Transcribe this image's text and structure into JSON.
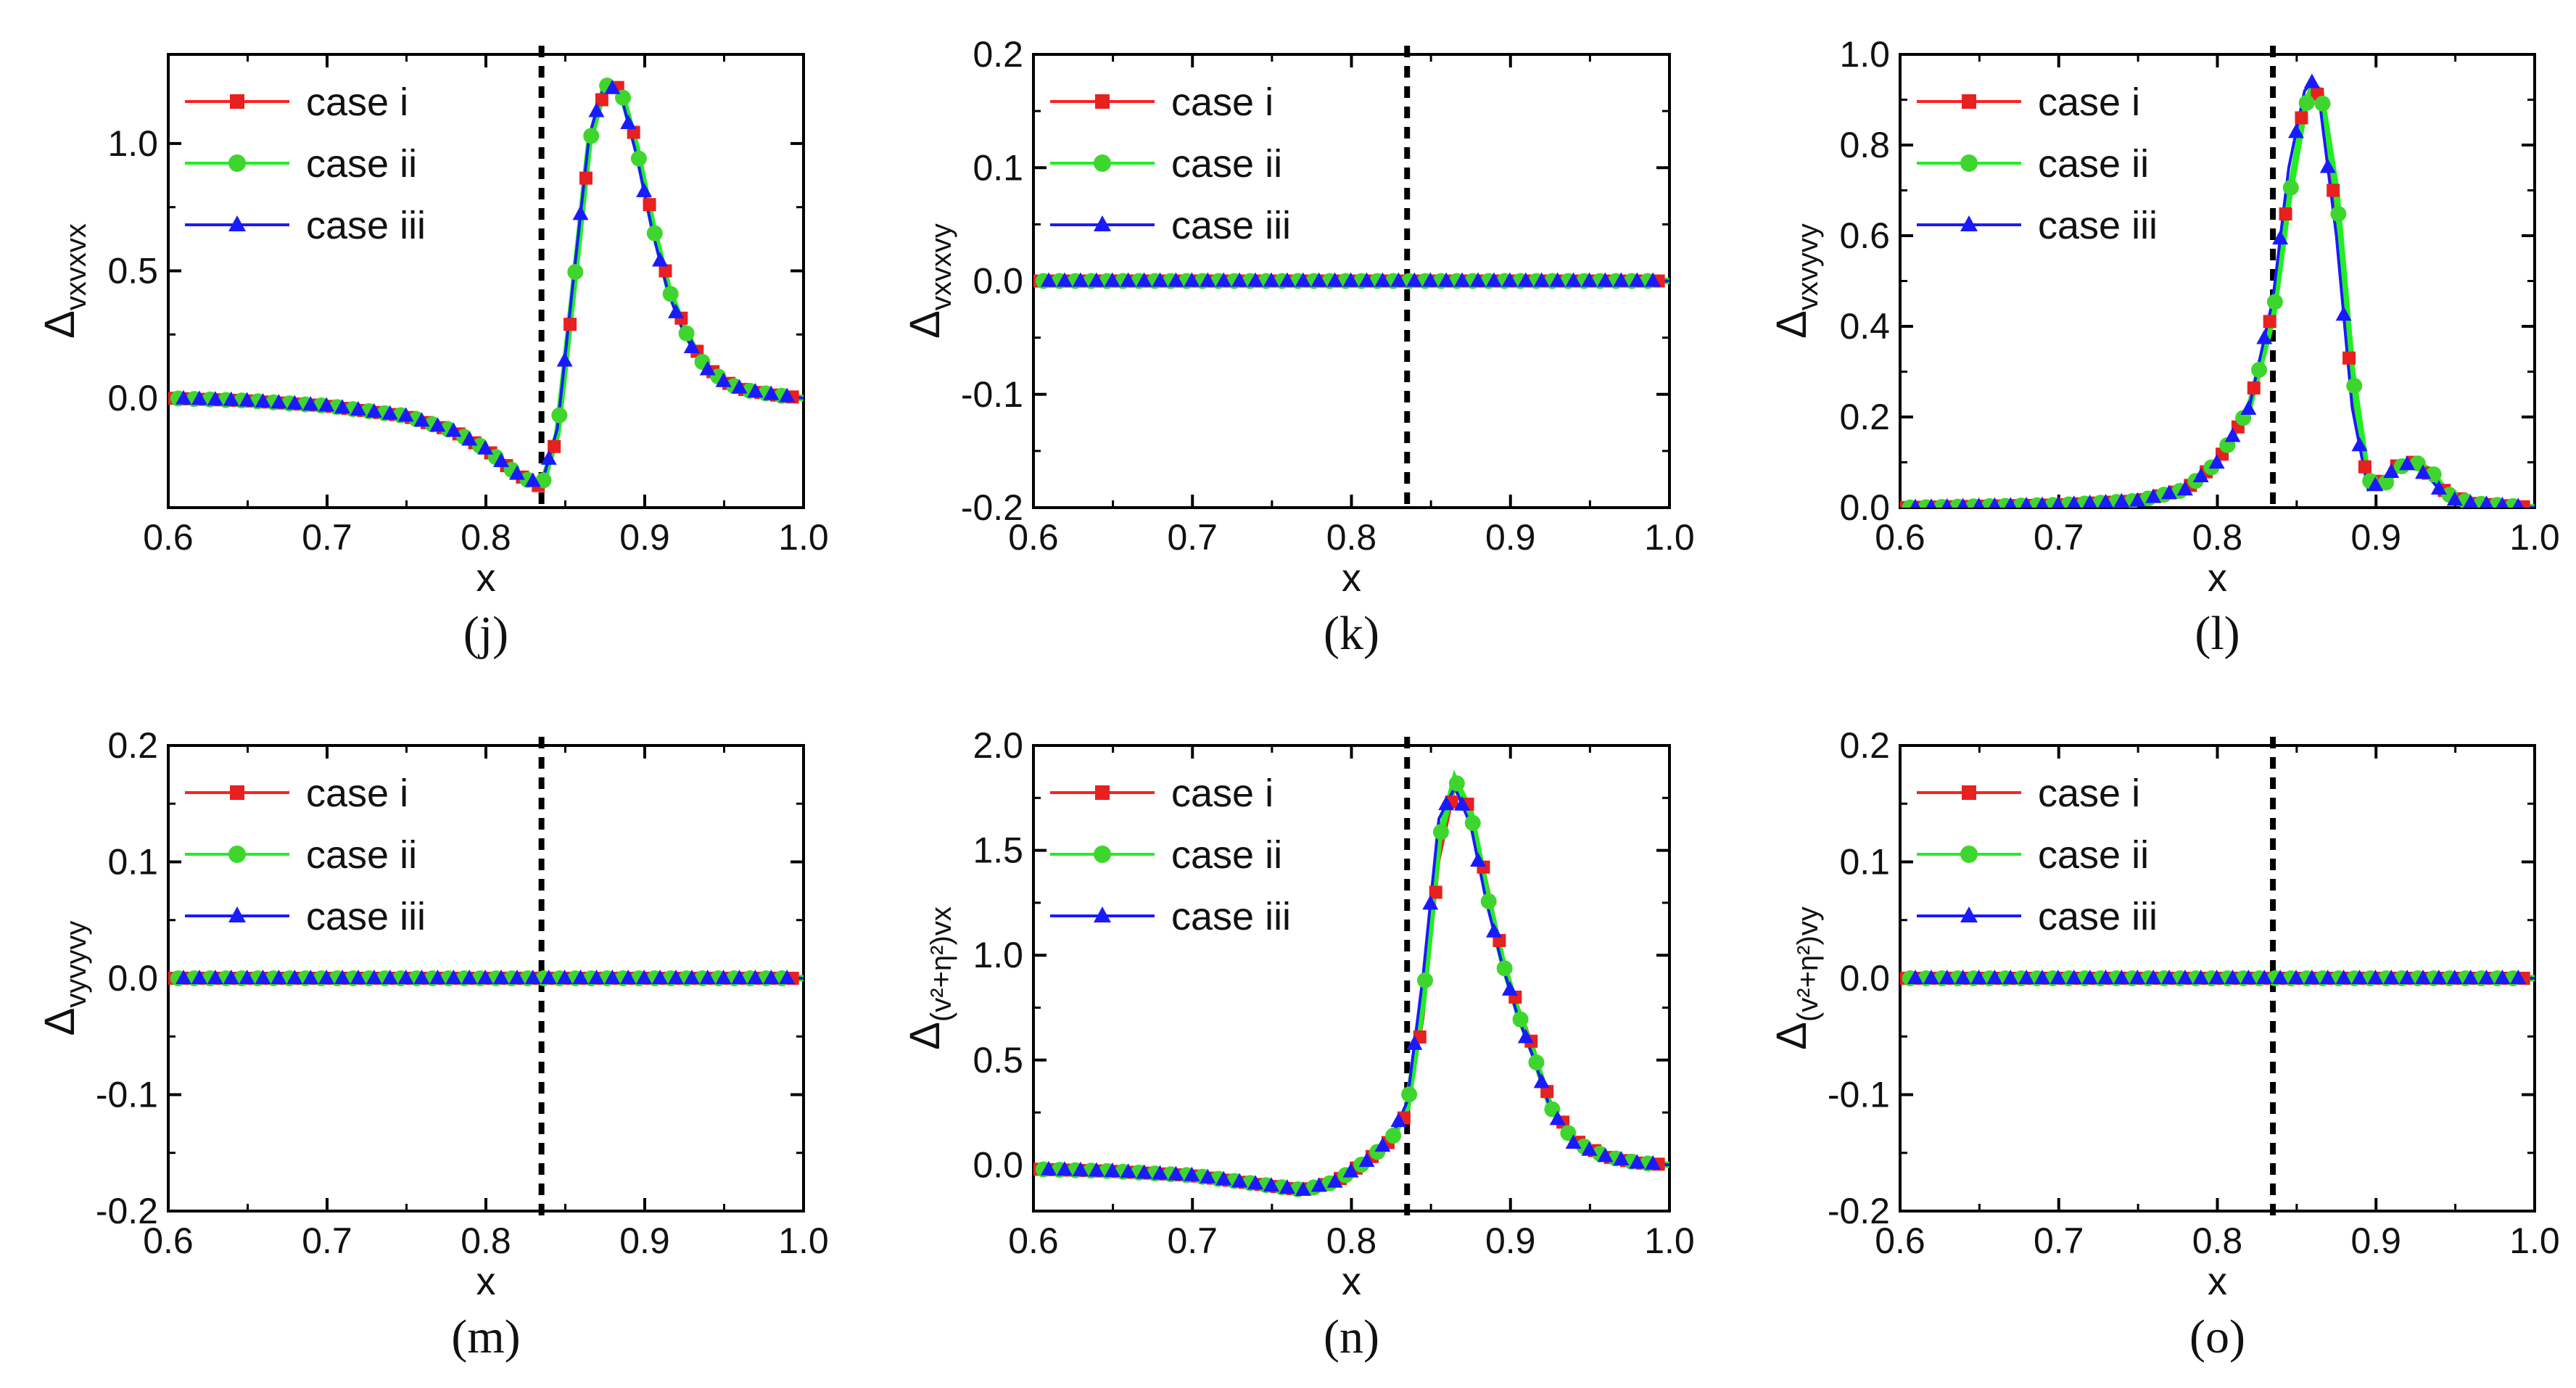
{
  "chart_data": [
    {
      "panel": "(j)",
      "type": "line",
      "ylabel_main": "Δ",
      "ylabel_sub": "vxvxvx",
      "ylabel_sup": "",
      "xlabel": "x",
      "xlim": [
        0.6,
        1.0
      ],
      "ylim": [
        -0.43,
        1.35
      ],
      "xticks": [
        "0.6",
        "0.7",
        "0.8",
        "0.9",
        "1.0"
      ],
      "yticks": [
        {
          "v": 0.0,
          "label": "0.0"
        },
        {
          "v": 0.5,
          "label": "0.5"
        },
        {
          "v": 1.0,
          "label": "1.0"
        }
      ],
      "vline_x": 0.835,
      "x": [
        0.6,
        0.65,
        0.7,
        0.75,
        0.78,
        0.8,
        0.82,
        0.835,
        0.845,
        0.855,
        0.865,
        0.875,
        0.885,
        0.895,
        0.905,
        0.915,
        0.925,
        0.935,
        0.945,
        0.955,
        0.965,
        0.975,
        0.985,
        1.0
      ],
      "series": [
        {
          "name": "case i",
          "y": [
            0.0,
            -0.01,
            -0.03,
            -0.07,
            -0.13,
            -0.2,
            -0.3,
            -0.35,
            -0.15,
            0.4,
            0.98,
            1.22,
            1.22,
            1.0,
            0.7,
            0.45,
            0.28,
            0.16,
            0.09,
            0.05,
            0.03,
            0.02,
            0.01,
            0.0
          ]
        },
        {
          "name": "case ii",
          "y": [
            0.0,
            -0.01,
            -0.03,
            -0.07,
            -0.13,
            -0.2,
            -0.3,
            -0.35,
            -0.14,
            0.42,
            1.0,
            1.23,
            1.21,
            0.98,
            0.68,
            0.43,
            0.27,
            0.15,
            0.09,
            0.05,
            0.03,
            0.02,
            0.01,
            0.0
          ]
        },
        {
          "name": "case iii",
          "y": [
            0.0,
            -0.01,
            -0.03,
            -0.07,
            -0.13,
            -0.2,
            -0.3,
            -0.34,
            -0.12,
            0.46,
            1.03,
            1.24,
            1.19,
            0.95,
            0.65,
            0.41,
            0.25,
            0.14,
            0.08,
            0.05,
            0.03,
            0.02,
            0.01,
            0.0
          ]
        }
      ]
    },
    {
      "panel": "(k)",
      "type": "line",
      "ylabel_main": "Δ",
      "ylabel_sub": "vxvxvy",
      "ylabel_sup": "",
      "xlabel": "x",
      "xlim": [
        0.6,
        1.0
      ],
      "ylim": [
        -0.2,
        0.2
      ],
      "xticks": [
        "0.6",
        "0.7",
        "0.8",
        "0.9",
        "1.0"
      ],
      "yticks": [
        {
          "v": -0.2,
          "label": "-0.2"
        },
        {
          "v": -0.1,
          "label": "-0.1"
        },
        {
          "v": 0.0,
          "label": "0.0"
        },
        {
          "v": 0.1,
          "label": "0.1"
        },
        {
          "v": 0.2,
          "label": "0.2"
        }
      ],
      "vline_x": 0.835,
      "x": [
        0.6,
        1.0
      ],
      "series": [
        {
          "name": "case i",
          "y": [
            0.0,
            0.0
          ]
        },
        {
          "name": "case ii",
          "y": [
            0.0,
            0.0
          ]
        },
        {
          "name": "case iii",
          "y": [
            0.0,
            0.0
          ]
        }
      ]
    },
    {
      "panel": "(l)",
      "type": "line",
      "ylabel_main": "Δ",
      "ylabel_sub": "vxvyvy",
      "ylabel_sup": "",
      "xlabel": "x",
      "xlim": [
        0.6,
        1.0
      ],
      "ylim": [
        0.0,
        1.0
      ],
      "xticks": [
        "0.6",
        "0.7",
        "0.8",
        "0.9",
        "1.0"
      ],
      "yticks": [
        {
          "v": 0.0,
          "label": "0.0"
        },
        {
          "v": 0.2,
          "label": "0.2"
        },
        {
          "v": 0.4,
          "label": "0.4"
        },
        {
          "v": 0.6,
          "label": "0.6"
        },
        {
          "v": 0.8,
          "label": "0.8"
        },
        {
          "v": 1.0,
          "label": "1.0"
        }
      ],
      "vline_x": 0.835,
      "x": [
        0.6,
        0.65,
        0.7,
        0.75,
        0.78,
        0.8,
        0.82,
        0.835,
        0.845,
        0.855,
        0.86,
        0.865,
        0.875,
        0.885,
        0.895,
        0.905,
        0.915,
        0.925,
        0.935,
        0.945,
        0.96,
        0.98,
        1.0
      ],
      "series": [
        {
          "name": "case i",
          "y": [
            0.0,
            0.003,
            0.006,
            0.015,
            0.04,
            0.1,
            0.22,
            0.44,
            0.7,
            0.9,
            0.93,
            0.9,
            0.65,
            0.25,
            0.05,
            0.06,
            0.1,
            0.1,
            0.07,
            0.03,
            0.01,
            0.005,
            0.0
          ]
        },
        {
          "name": "case ii",
          "y": [
            0.0,
            0.003,
            0.006,
            0.015,
            0.04,
            0.1,
            0.22,
            0.42,
            0.68,
            0.88,
            0.93,
            0.92,
            0.7,
            0.3,
            0.06,
            0.05,
            0.09,
            0.1,
            0.08,
            0.03,
            0.01,
            0.005,
            0.0
          ]
        },
        {
          "name": "case iii",
          "y": [
            0.0,
            0.003,
            0.006,
            0.015,
            0.04,
            0.1,
            0.22,
            0.46,
            0.75,
            0.92,
            0.94,
            0.88,
            0.6,
            0.22,
            0.04,
            0.06,
            0.1,
            0.09,
            0.06,
            0.02,
            0.01,
            0.005,
            0.0
          ]
        }
      ]
    },
    {
      "panel": "(m)",
      "type": "line",
      "ylabel_main": "Δ",
      "ylabel_sub": "vyvyvy",
      "ylabel_sup": "",
      "xlabel": "x",
      "xlim": [
        0.6,
        1.0
      ],
      "ylim": [
        -0.2,
        0.2
      ],
      "xticks": [
        "0.6",
        "0.7",
        "0.8",
        "0.9",
        "1.0"
      ],
      "yticks": [
        {
          "v": -0.2,
          "label": "-0.2"
        },
        {
          "v": -0.1,
          "label": "-0.1"
        },
        {
          "v": 0.0,
          "label": "0.0"
        },
        {
          "v": 0.1,
          "label": "0.1"
        },
        {
          "v": 0.2,
          "label": "0.2"
        }
      ],
      "vline_x": 0.835,
      "x": [
        0.6,
        1.0
      ],
      "series": [
        {
          "name": "case i",
          "y": [
            0.0,
            0.0
          ]
        },
        {
          "name": "case ii",
          "y": [
            0.0,
            0.0
          ]
        },
        {
          "name": "case iii",
          "y": [
            0.0,
            0.0
          ]
        }
      ]
    },
    {
      "panel": "(n)",
      "type": "line",
      "ylabel_main": "Δ",
      "ylabel_sub": "(v²+η²)vx",
      "ylabel_sup": "",
      "xlabel": "x",
      "xlim": [
        0.6,
        1.0
      ],
      "ylim": [
        -0.22,
        2.0
      ],
      "xticks": [
        "0.6",
        "0.7",
        "0.8",
        "0.9",
        "1.0"
      ],
      "yticks": [
        {
          "v": 0.0,
          "label": "0.0"
        },
        {
          "v": 0.5,
          "label": "0.5"
        },
        {
          "v": 1.0,
          "label": "1.0"
        },
        {
          "v": 1.5,
          "label": "1.5"
        },
        {
          "v": 2.0,
          "label": "2.0"
        }
      ],
      "vline_x": 0.835,
      "x": [
        0.6,
        0.65,
        0.7,
        0.73,
        0.75,
        0.77,
        0.79,
        0.81,
        0.825,
        0.835,
        0.845,
        0.855,
        0.865,
        0.875,
        0.885,
        0.895,
        0.905,
        0.915,
        0.925,
        0.94,
        0.96,
        0.98,
        1.0
      ],
      "series": [
        {
          "name": "case i",
          "y": [
            -0.02,
            -0.03,
            -0.05,
            -0.08,
            -0.1,
            -0.12,
            -0.08,
            0.02,
            0.12,
            0.25,
            0.7,
            1.45,
            1.8,
            1.7,
            1.35,
            1.0,
            0.75,
            0.55,
            0.3,
            0.12,
            0.04,
            0.01,
            0.0
          ]
        },
        {
          "name": "case ii",
          "y": [
            -0.02,
            -0.03,
            -0.05,
            -0.08,
            -0.1,
            -0.12,
            -0.08,
            0.02,
            0.12,
            0.27,
            0.78,
            1.55,
            1.84,
            1.68,
            1.3,
            0.97,
            0.72,
            0.52,
            0.28,
            0.11,
            0.04,
            0.01,
            0.0
          ]
        },
        {
          "name": "case iii",
          "y": [
            -0.02,
            -0.03,
            -0.05,
            -0.08,
            -0.1,
            -0.12,
            -0.08,
            0.02,
            0.13,
            0.3,
            0.9,
            1.65,
            1.8,
            1.62,
            1.25,
            0.95,
            0.7,
            0.5,
            0.27,
            0.1,
            0.04,
            0.01,
            0.0
          ]
        }
      ]
    },
    {
      "panel": "(o)",
      "type": "line",
      "ylabel_main": "Δ",
      "ylabel_sub": "(v²+η²)vy",
      "ylabel_sup": "",
      "xlabel": "x",
      "xlim": [
        0.6,
        1.0
      ],
      "ylim": [
        -0.2,
        0.2
      ],
      "xticks": [
        "0.6",
        "0.7",
        "0.8",
        "0.9",
        "1.0"
      ],
      "yticks": [
        {
          "v": -0.2,
          "label": "-0.2"
        },
        {
          "v": -0.1,
          "label": "-0.1"
        },
        {
          "v": 0.0,
          "label": "0.0"
        },
        {
          "v": 0.1,
          "label": "0.1"
        },
        {
          "v": 0.2,
          "label": "0.2"
        }
      ],
      "vline_x": 0.835,
      "x": [
        0.6,
        1.0
      ],
      "series": [
        {
          "name": "case i",
          "y": [
            0.0,
            0.0
          ]
        },
        {
          "name": "case ii",
          "y": [
            0.0,
            0.0
          ]
        },
        {
          "name": "case iii",
          "y": [
            0.0,
            0.0
          ]
        }
      ]
    }
  ],
  "legend": [
    "case i",
    "case ii",
    "case iii"
  ],
  "series_colors": [
    "#ff2020",
    "#22ee22",
    "#1a1aff"
  ],
  "marker_colors": [
    "#e82020",
    "#3ed62e",
    "#1a1aff"
  ],
  "marker_shapes": [
    "square",
    "circle",
    "triangle"
  ]
}
